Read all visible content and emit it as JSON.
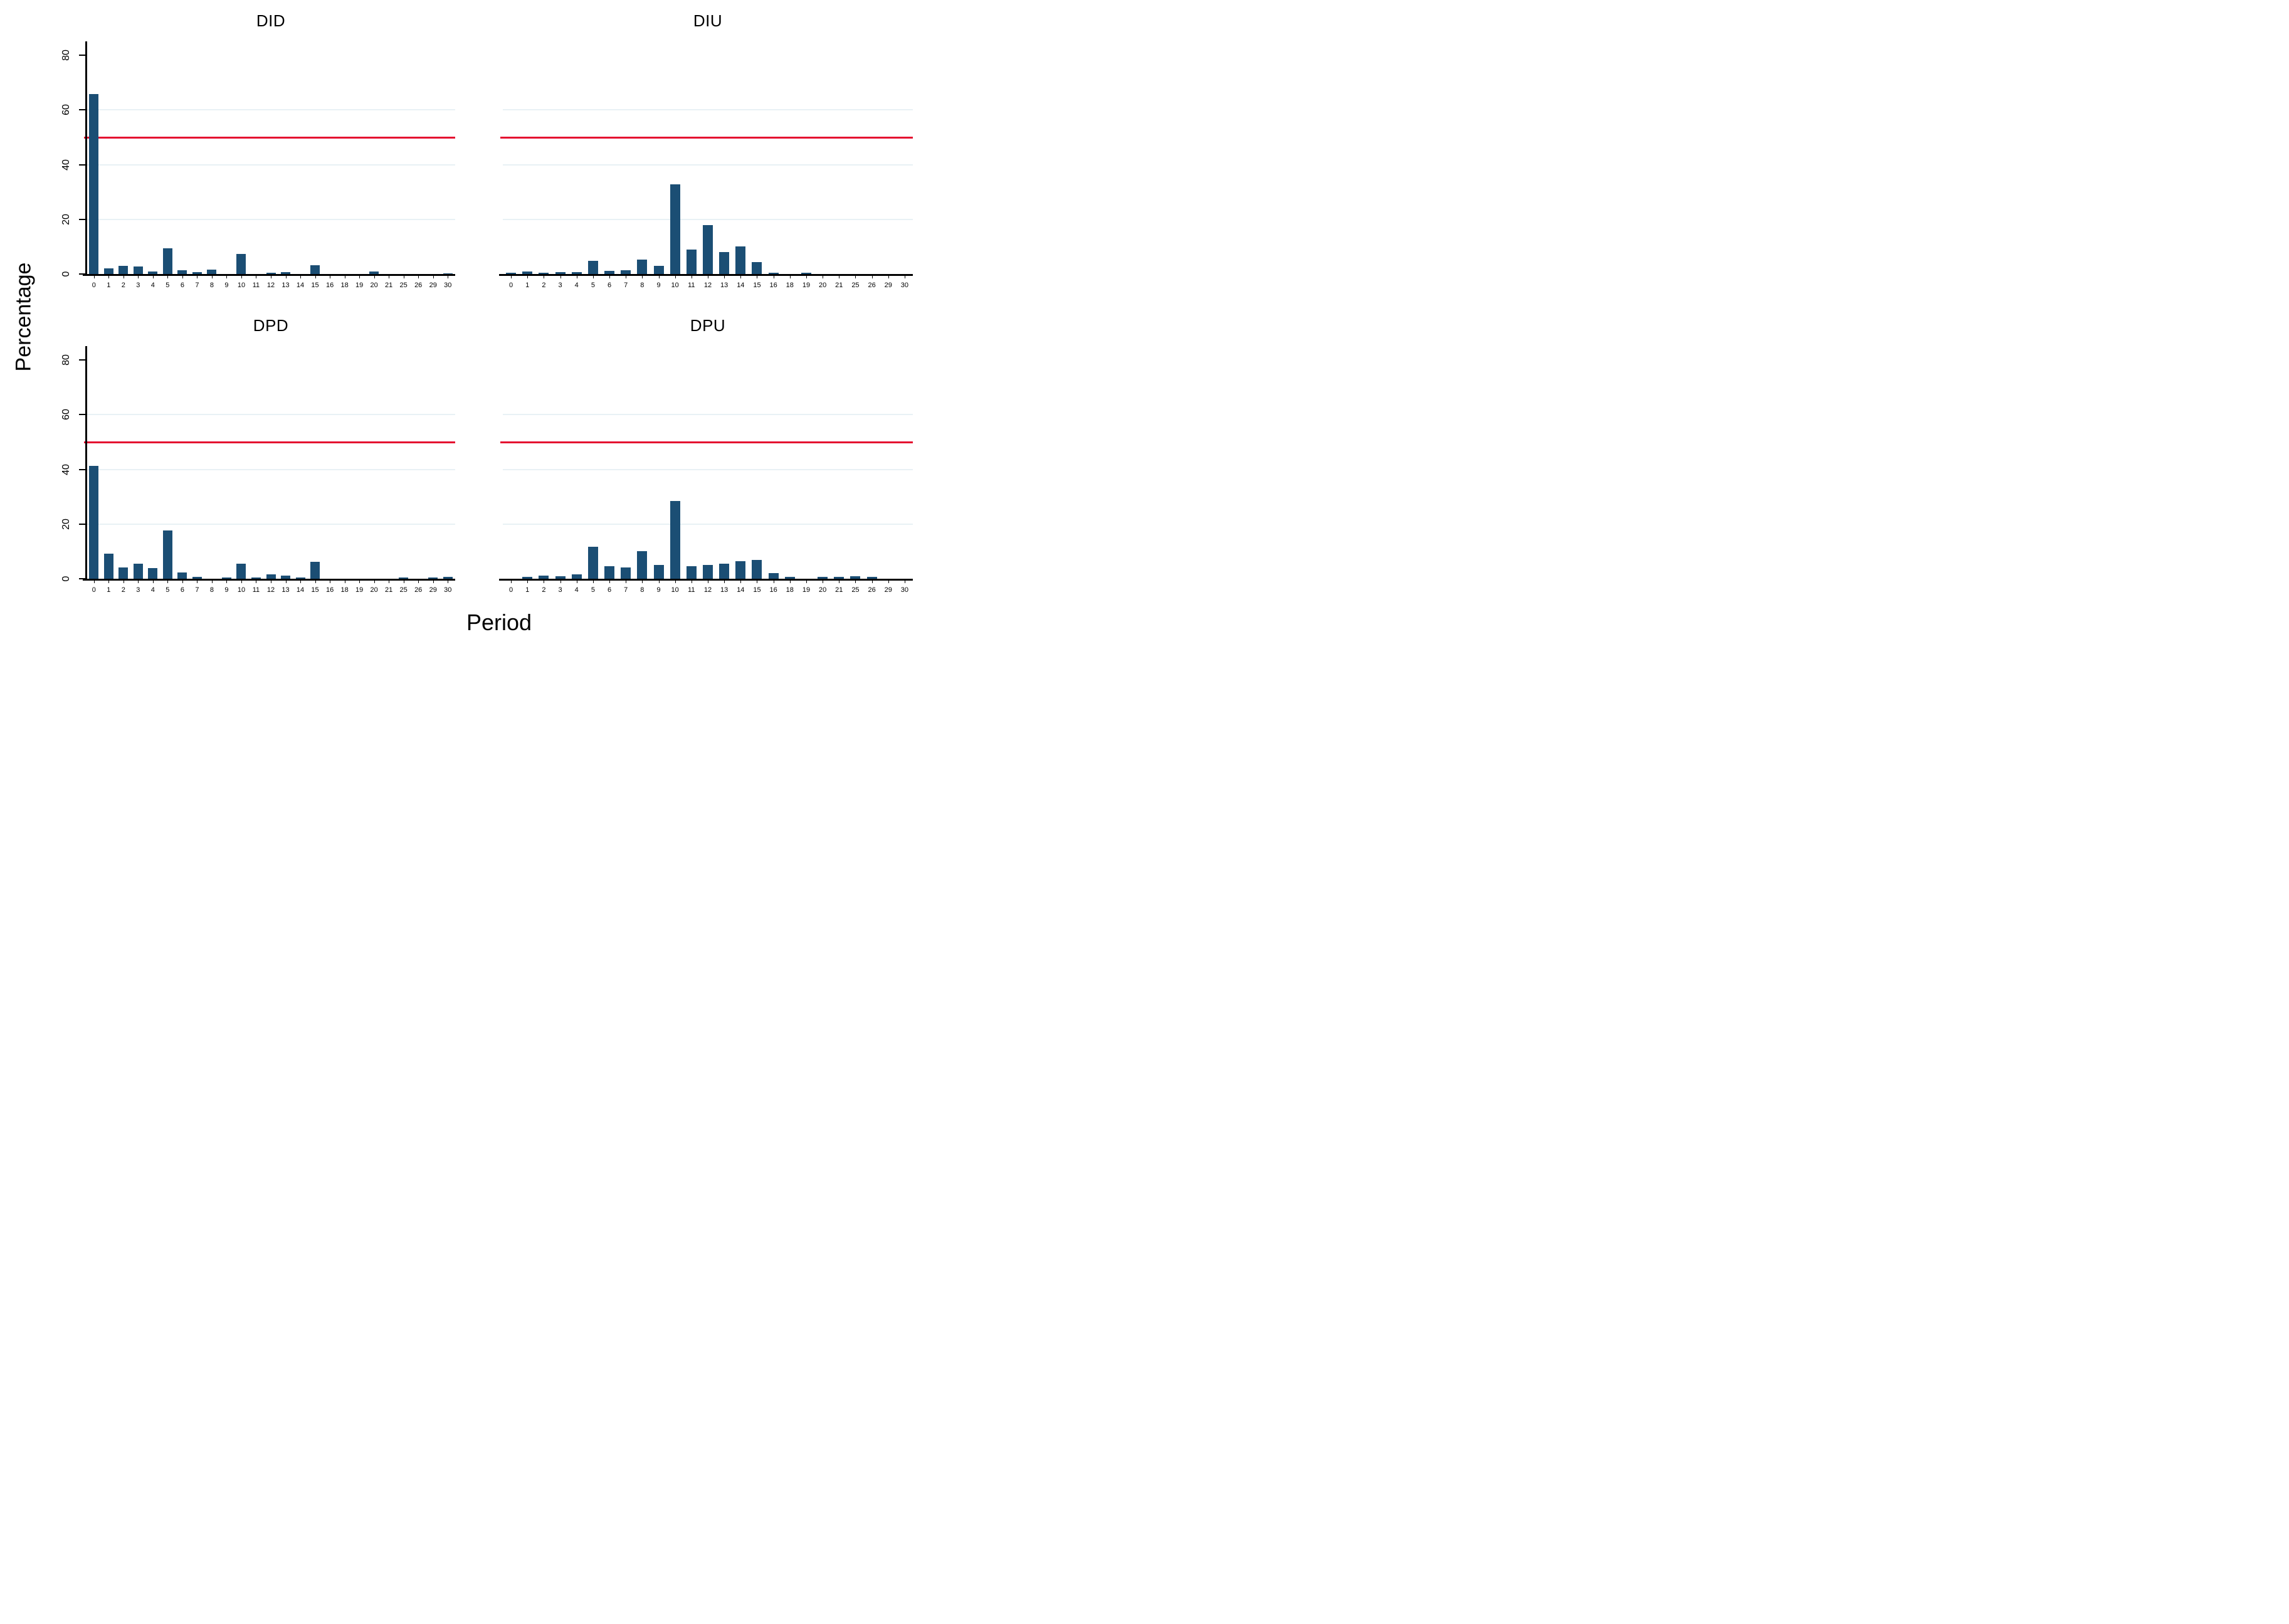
{
  "figure": {
    "ylabel": "Percentage",
    "xlabel": "Period"
  },
  "colors": {
    "bar": "#1b4e74",
    "refline": "#e4032e",
    "gridline": "#e8f1f5",
    "axis": "#000000",
    "background": "#ffffff"
  },
  "chart_data": {
    "type": "bar",
    "layout": "2x2 panels, shared axes, gridlines on, no legend",
    "xlabel": "Period",
    "ylabel": "Percentage",
    "ylim": [
      0,
      85
    ],
    "yticks": [
      0,
      20,
      40,
      60,
      80
    ],
    "gridline_values": [
      20,
      40,
      60
    ],
    "reference_line_y": 50,
    "categories": [
      "0",
      "1",
      "2",
      "3",
      "4",
      "5",
      "6",
      "7",
      "8",
      "9",
      "10",
      "11",
      "12",
      "13",
      "14",
      "15",
      "16",
      "18",
      "19",
      "20",
      "21",
      "25",
      "26",
      "29",
      "30"
    ],
    "series": [
      {
        "name": "DID",
        "values": [
          65.8,
          2.0,
          3.0,
          2.8,
          0.9,
          9.5,
          1.4,
          0.8,
          1.5,
          0,
          7.3,
          0,
          0.5,
          0.6,
          0,
          3.2,
          0,
          0,
          0,
          1.0,
          0,
          0,
          0,
          0,
          0.3
        ]
      },
      {
        "name": "DIU",
        "values": [
          0.4,
          0.9,
          0.4,
          0.6,
          0.7,
          4.9,
          1.2,
          1.3,
          5.2,
          3.0,
          32.7,
          8.9,
          18.0,
          8.1,
          10.2,
          4.4,
          0.5,
          0,
          0.4,
          0,
          0,
          0,
          0,
          0,
          0
        ]
      },
      {
        "name": "DPD",
        "values": [
          41.3,
          9.1,
          4.1,
          5.5,
          3.8,
          17.7,
          2.2,
          0.6,
          0,
          0.4,
          5.5,
          0.5,
          1.5,
          1.2,
          0.5,
          6.3,
          0,
          0,
          0,
          0,
          0,
          0.4,
          0,
          0.4,
          0.6
        ]
      },
      {
        "name": "DPU",
        "values": [
          0,
          0.8,
          1.2,
          1.0,
          1.5,
          11.7,
          4.7,
          4.1,
          10.1,
          5.1,
          28.4,
          4.7,
          5.1,
          5.4,
          6.5,
          6.8,
          2.0,
          0.8,
          0,
          0.6,
          0.6,
          0.9,
          0.7,
          0,
          0
        ]
      }
    ]
  },
  "panels": [
    {
      "title": "DID",
      "col": "left",
      "row": "top"
    },
    {
      "title": "DIU",
      "col": "right",
      "row": "top"
    },
    {
      "title": "DPD",
      "col": "left",
      "row": "bottom"
    },
    {
      "title": "DPU",
      "col": "right",
      "row": "bottom"
    }
  ]
}
